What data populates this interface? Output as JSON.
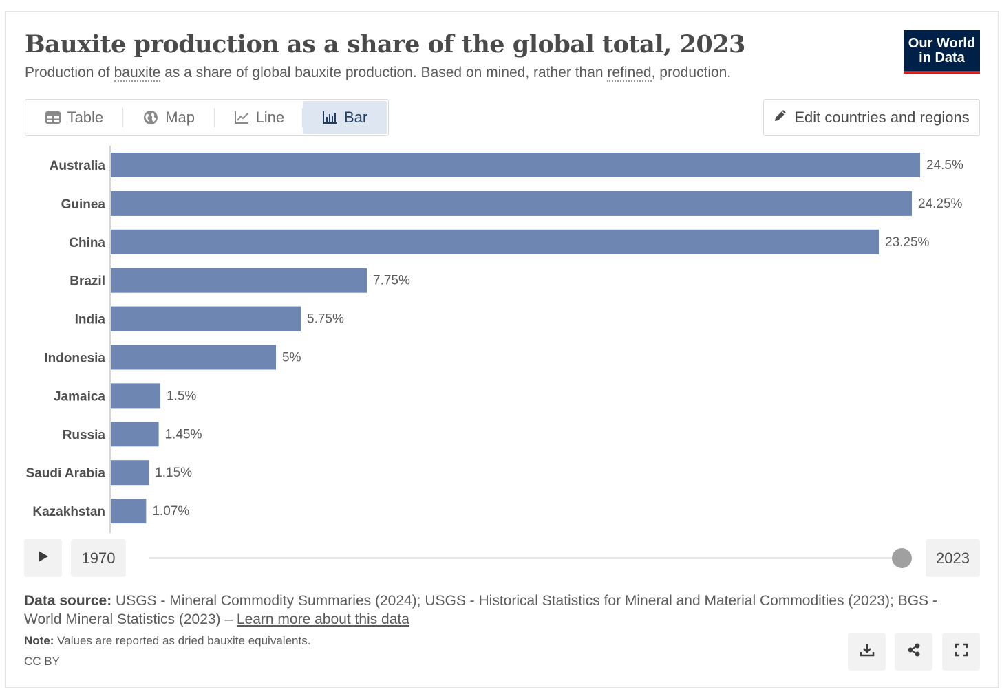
{
  "header": {
    "title": "Bauxite production as a share of the global total, 2023",
    "subtitle_pre": "Production of ",
    "subtitle_term1": "bauxite",
    "subtitle_mid": " as a share of global bauxite production. Based on mined, rather than ",
    "subtitle_term2": "refined",
    "subtitle_post": ", production.",
    "logo_line1": "Our World",
    "logo_line2": "in Data"
  },
  "tabs": [
    {
      "label": "Table",
      "icon": "table-icon",
      "active": false
    },
    {
      "label": "Map",
      "icon": "globe-icon",
      "active": false
    },
    {
      "label": "Line",
      "icon": "line-chart-icon",
      "active": false
    },
    {
      "label": "Bar",
      "icon": "bar-chart-icon",
      "active": true
    }
  ],
  "edit_button": {
    "label": "Edit countries and regions",
    "icon": "pencil-icon"
  },
  "timeline": {
    "start_year": "1970",
    "end_year": "2023",
    "position": 1.0,
    "play_icon": "play-icon"
  },
  "footer": {
    "source_label": "Data source:",
    "source_text": " USGS - Mineral Commodity Summaries (2024); USGS - Historical Statistics for Mineral and Material Commodities (2023); BGS - World Mineral Statistics (2023) – ",
    "learn_more": "Learn more about this data",
    "note_label": "Note:",
    "note_text": " Values are reported as dried bauxite equivalents.",
    "license": "CC BY"
  },
  "actions": [
    {
      "name": "download-button",
      "icon": "download-icon"
    },
    {
      "name": "share-button",
      "icon": "share-icon"
    },
    {
      "name": "fullscreen-button",
      "icon": "fullscreen-icon"
    }
  ],
  "colors": {
    "bar": "#6d87b2",
    "logo_bg": "#002147",
    "logo_accent": "#ce261e",
    "active_tab": "#dde6f1"
  },
  "chart_data": {
    "type": "bar",
    "orientation": "horizontal",
    "categories": [
      "Australia",
      "Guinea",
      "China",
      "Brazil",
      "India",
      "Indonesia",
      "Jamaica",
      "Russia",
      "Saudi Arabia",
      "Kazakhstan"
    ],
    "values": [
      24.5,
      24.25,
      23.25,
      7.75,
      5.75,
      5,
      1.5,
      1.45,
      1.15,
      1.07
    ],
    "labels": [
      "24.5%",
      "24.25%",
      "23.25%",
      "7.75%",
      "5.75%",
      "5%",
      "1.5%",
      "1.45%",
      "1.15%",
      "1.07%"
    ],
    "title": "Bauxite production as a share of the global total, 2023",
    "xlabel": "",
    "ylabel": "",
    "unit": "%",
    "xlim": [
      0,
      24.5
    ],
    "grid": false,
    "legend": "none"
  }
}
